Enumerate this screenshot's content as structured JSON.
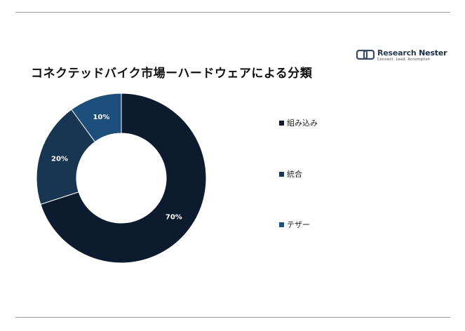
{
  "header": {
    "title": "コネクテッドバイク市場ーハードウェアによる分類"
  },
  "logo": {
    "name_part1": "Research ",
    "name_part2": "Nester",
    "tagline": "Connect. Lead. Accomplish"
  },
  "chart_data": {
    "type": "pie",
    "donut": true,
    "title": "コネクテッドバイク市場ーハードウェアによる分類",
    "categories": [
      "組み込み",
      "統合",
      "テザー"
    ],
    "values": [
      70,
      20,
      10
    ],
    "labels": [
      "70%",
      "20%",
      "10%"
    ],
    "colors": [
      "#0c1b2d",
      "#183552",
      "#1d4f7c"
    ],
    "legend_position": "right"
  }
}
